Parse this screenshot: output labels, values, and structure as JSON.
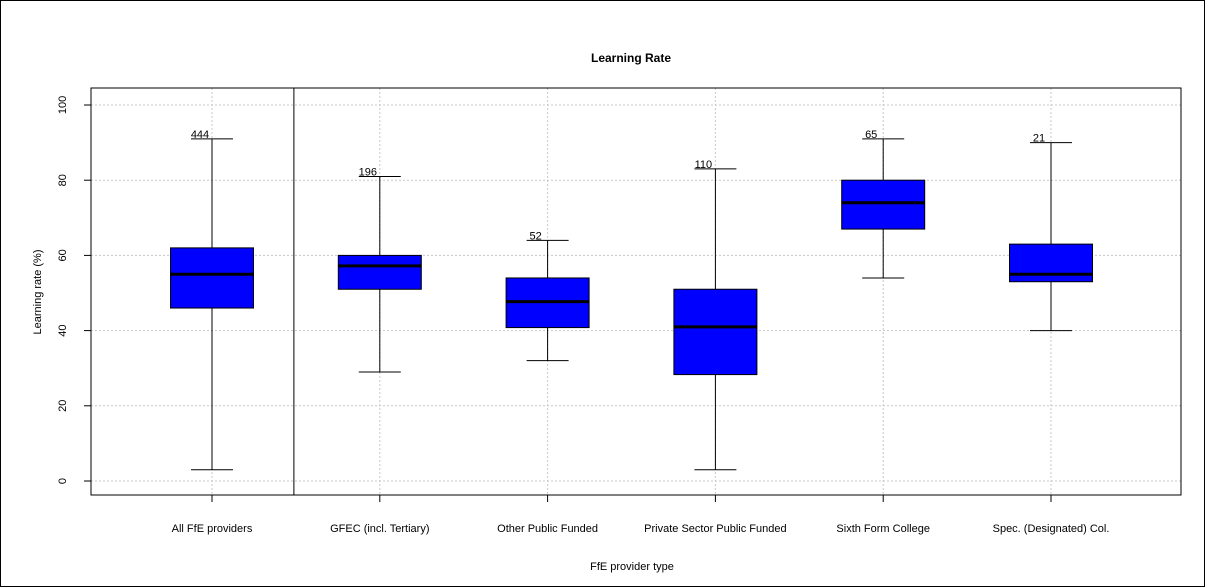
{
  "chart_data": {
    "type": "boxplot",
    "title": "Learning Rate",
    "xlabel": "FfE provider type",
    "ylabel": "Learning rate (%)",
    "ylim": [
      -3,
      104
    ],
    "yticks": [
      0,
      20,
      40,
      60,
      80,
      100
    ],
    "grid": true,
    "box_color": "#0000ff",
    "categories": [
      "All FfE providers",
      "GFEC (incl. Tertiary)",
      "Other Public Funded",
      "Private Sector Public Funded",
      "Sixth Form College",
      "Spec. (Designated) Col."
    ],
    "boxes": [
      {
        "min": 3,
        "q1": 46,
        "median": 55,
        "q3": 62,
        "max": 91,
        "n": "444"
      },
      {
        "min": 29,
        "q1": 51,
        "median": 57.2,
        "q3": 60,
        "max": 81,
        "n": "196"
      },
      {
        "min": 32,
        "q1": 40.8,
        "median": 47.7,
        "q3": 54,
        "max": 64,
        "n": "52"
      },
      {
        "min": 3,
        "q1": 28.3,
        "median": 41,
        "q3": 51,
        "max": 83,
        "n": "110"
      },
      {
        "min": 54,
        "q1": 67,
        "median": 74,
        "q3": 80,
        "max": 91,
        "n": "65"
      },
      {
        "min": 40,
        "q1": 53,
        "median": 55,
        "q3": 63,
        "max": 90,
        "n": "21"
      }
    ],
    "separator_after_index": 0
  }
}
